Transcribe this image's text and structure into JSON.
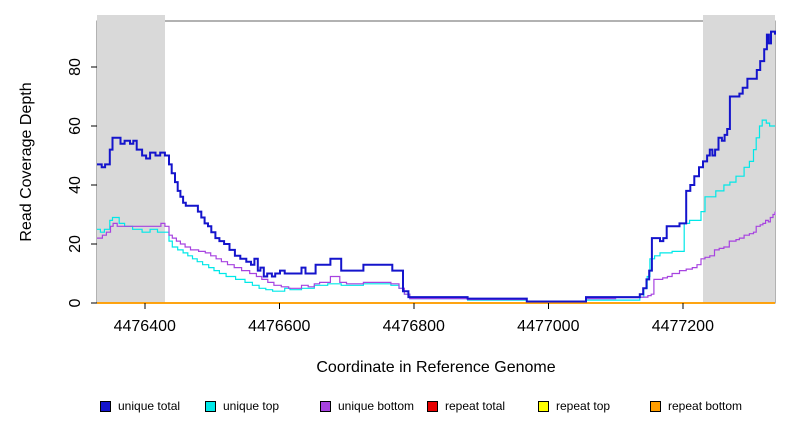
{
  "chart_data": {
    "type": "line",
    "subtype": "step",
    "title": "",
    "xlabel": "Coordinate in Reference Genome",
    "ylabel": "Read Coverage Depth",
    "xlim": [
      4476329,
      4477337
    ],
    "ylim": [
      0,
      95.6
    ],
    "x_ticks": [
      4476400,
      4476600,
      4476800,
      4477000,
      4477200
    ],
    "y_ticks": [
      0,
      20,
      40,
      60,
      80
    ],
    "grid": false,
    "legend_position": "bottom",
    "background_color": "#ffffff",
    "box_color": "#666666",
    "shaded_regions": {
      "color": "#d9d9d9",
      "ranges": [
        [
          4476329,
          4476430
        ],
        [
          4477230,
          4477337
        ]
      ]
    },
    "series": [
      {
        "name": "unique total",
        "color": "#1414cc",
        "line_width": 2,
        "points": [
          [
            4476329,
            47
          ],
          [
            4476336,
            46
          ],
          [
            4476341,
            47
          ],
          [
            4476348,
            52
          ],
          [
            4476352,
            56
          ],
          [
            4476364,
            54
          ],
          [
            4476370,
            55
          ],
          [
            4476378,
            54
          ],
          [
            4476383,
            55
          ],
          [
            4476388,
            52
          ],
          [
            4476396,
            50
          ],
          [
            4476402,
            49
          ],
          [
            4476408,
            51
          ],
          [
            4476416,
            50
          ],
          [
            4476423,
            51
          ],
          [
            4476430,
            50
          ],
          [
            4476436,
            47
          ],
          [
            4476440,
            44
          ],
          [
            4476445,
            41
          ],
          [
            4476449,
            38
          ],
          [
            4476453,
            36
          ],
          [
            4476457,
            34
          ],
          [
            4476461,
            33
          ],
          [
            4476474,
            33
          ],
          [
            4476479,
            31
          ],
          [
            4476484,
            29
          ],
          [
            4476489,
            27
          ],
          [
            4476494,
            26
          ],
          [
            4476499,
            24
          ],
          [
            4476505,
            22
          ],
          [
            4476511,
            21
          ],
          [
            4476518,
            20
          ],
          [
            4476526,
            18
          ],
          [
            4476534,
            16
          ],
          [
            4476542,
            15
          ],
          [
            4476551,
            14
          ],
          [
            4476558,
            13
          ],
          [
            4476563,
            15
          ],
          [
            4476568,
            11
          ],
          [
            4476572,
            12
          ],
          [
            4476577,
            9
          ],
          [
            4476582,
            10
          ],
          [
            4476589,
            9
          ],
          [
            4476594,
            10
          ],
          [
            4476601,
            11
          ],
          [
            4476608,
            10
          ],
          [
            4476633,
            12
          ],
          [
            4476639,
            10
          ],
          [
            4476654,
            13
          ],
          [
            4476676,
            15
          ],
          [
            4476692,
            11
          ],
          [
            4476725,
            13
          ],
          [
            4476768,
            11
          ],
          [
            4476784,
            4
          ],
          [
            4476792,
            2
          ],
          [
            4476880,
            1.5
          ],
          [
            4476968,
            0.5
          ],
          [
            4477056,
            2
          ],
          [
            4477136,
            3
          ],
          [
            4477141,
            5
          ],
          [
            4477146,
            8
          ],
          [
            4477150,
            11
          ],
          [
            4477154,
            22
          ],
          [
            4477166,
            21
          ],
          [
            4477171,
            22
          ],
          [
            4477176,
            26
          ],
          [
            4477195,
            27
          ],
          [
            4477205,
            38
          ],
          [
            4477211,
            40
          ],
          [
            4477217,
            43
          ],
          [
            4477224,
            46
          ],
          [
            4477230,
            48
          ],
          [
            4477236,
            50
          ],
          [
            4477240,
            52
          ],
          [
            4477244,
            50
          ],
          [
            4477248,
            52
          ],
          [
            4477253,
            56
          ],
          [
            4477258,
            55
          ],
          [
            4477262,
            57
          ],
          [
            4477266,
            59
          ],
          [
            4477270,
            70
          ],
          [
            4477284,
            71
          ],
          [
            4477289,
            73
          ],
          [
            4477296,
            76
          ],
          [
            4477310,
            79
          ],
          [
            4477315,
            82
          ],
          [
            4477321,
            86
          ],
          [
            4477325,
            91
          ],
          [
            4477328,
            88
          ],
          [
            4477331,
            92
          ],
          [
            4477337,
            91
          ]
        ]
      },
      {
        "name": "unique top",
        "color": "#00e8e8",
        "line_width": 1.2,
        "points": [
          [
            4476329,
            25
          ],
          [
            4476334,
            24
          ],
          [
            4476340,
            25
          ],
          [
            4476348,
            28
          ],
          [
            4476352,
            29
          ],
          [
            4476362,
            27
          ],
          [
            4476370,
            26
          ],
          [
            4476382,
            25
          ],
          [
            4476396,
            24
          ],
          [
            4476408,
            25
          ],
          [
            4476419,
            24
          ],
          [
            4476430,
            24
          ],
          [
            4476436,
            21
          ],
          [
            4476441,
            19
          ],
          [
            4476449,
            18
          ],
          [
            4476457,
            17
          ],
          [
            4476464,
            16
          ],
          [
            4476471,
            15
          ],
          [
            4476478,
            14
          ],
          [
            4476486,
            13
          ],
          [
            4476495,
            12
          ],
          [
            4476503,
            11
          ],
          [
            4476511,
            10
          ],
          [
            4476521,
            9
          ],
          [
            4476535,
            8
          ],
          [
            4476549,
            7
          ],
          [
            4476560,
            6
          ],
          [
            4476570,
            5
          ],
          [
            4476580,
            4.5
          ],
          [
            4476590,
            4
          ],
          [
            4476608,
            5
          ],
          [
            4476616,
            4.5
          ],
          [
            4476633,
            5
          ],
          [
            4476652,
            6
          ],
          [
            4476672,
            6.5
          ],
          [
            4476692,
            6
          ],
          [
            4476725,
            6.5
          ],
          [
            4476766,
            6
          ],
          [
            4476778,
            5
          ],
          [
            4476786,
            3
          ],
          [
            4476794,
            1.5
          ],
          [
            4476880,
            1
          ],
          [
            4476968,
            0.5
          ],
          [
            4477056,
            1
          ],
          [
            4477136,
            2
          ],
          [
            4477142,
            5
          ],
          [
            4477147,
            9
          ],
          [
            4477151,
            15
          ],
          [
            4477158,
            16
          ],
          [
            4477166,
            17
          ],
          [
            4477184,
            17.5
          ],
          [
            4477202,
            27
          ],
          [
            4477210,
            28
          ],
          [
            4477227,
            31
          ],
          [
            4477233,
            36
          ],
          [
            4477249,
            38
          ],
          [
            4477261,
            40
          ],
          [
            4477270,
            41
          ],
          [
            4477279,
            43
          ],
          [
            4477291,
            46
          ],
          [
            4477299,
            48
          ],
          [
            4477305,
            52
          ],
          [
            4477309,
            56
          ],
          [
            4477314,
            60
          ],
          [
            4477318,
            62
          ],
          [
            4477324,
            61
          ],
          [
            4477329,
            60
          ],
          [
            4477337,
            60
          ]
        ]
      },
      {
        "name": "unique bottom",
        "color": "#a743e0",
        "line_width": 1.2,
        "points": [
          [
            4476329,
            22
          ],
          [
            4476337,
            23
          ],
          [
            4476343,
            24
          ],
          [
            4476349,
            26
          ],
          [
            4476353,
            27
          ],
          [
            4476359,
            26
          ],
          [
            4476376,
            26
          ],
          [
            4476395,
            26
          ],
          [
            4476413,
            26
          ],
          [
            4476424,
            27
          ],
          [
            4476430,
            26
          ],
          [
            4476436,
            23
          ],
          [
            4476441,
            22
          ],
          [
            4476447,
            21
          ],
          [
            4476453,
            20
          ],
          [
            4476460,
            19
          ],
          [
            4476468,
            18
          ],
          [
            4476480,
            17.5
          ],
          [
            4476490,
            17
          ],
          [
            4476498,
            16
          ],
          [
            4476506,
            15
          ],
          [
            4476514,
            14
          ],
          [
            4476523,
            13
          ],
          [
            4476533,
            12
          ],
          [
            4476544,
            11
          ],
          [
            4476556,
            10
          ],
          [
            4476566,
            9
          ],
          [
            4476574,
            8
          ],
          [
            4476583,
            7
          ],
          [
            4476592,
            6
          ],
          [
            4476603,
            5.5
          ],
          [
            4476614,
            5
          ],
          [
            4476633,
            6
          ],
          [
            4476643,
            5.5
          ],
          [
            4476652,
            6.5
          ],
          [
            4476660,
            7
          ],
          [
            4476676,
            9
          ],
          [
            4476690,
            7
          ],
          [
            4476700,
            6.5
          ],
          [
            4476725,
            7
          ],
          [
            4476766,
            6.5
          ],
          [
            4476778,
            5
          ],
          [
            4476786,
            3
          ],
          [
            4476794,
            1.5
          ],
          [
            4476880,
            1.2
          ],
          [
            4476968,
            0.5
          ],
          [
            4477056,
            1.5
          ],
          [
            4477100,
            1.8
          ],
          [
            4477136,
            2
          ],
          [
            4477148,
            2.5
          ],
          [
            4477153,
            3
          ],
          [
            4477157,
            8
          ],
          [
            4477170,
            8.5
          ],
          [
            4477177,
            9
          ],
          [
            4477184,
            10
          ],
          [
            4477195,
            11
          ],
          [
            4477205,
            11.5
          ],
          [
            4477214,
            12
          ],
          [
            4477221,
            13
          ],
          [
            4477227,
            15
          ],
          [
            4477233,
            15.5
          ],
          [
            4477240,
            16
          ],
          [
            4477247,
            18
          ],
          [
            4477254,
            18.5
          ],
          [
            4477261,
            19
          ],
          [
            4477269,
            21
          ],
          [
            4477279,
            21.5
          ],
          [
            4477284,
            22
          ],
          [
            4477291,
            23
          ],
          [
            4477299,
            23.5
          ],
          [
            4477305,
            24
          ],
          [
            4477309,
            26
          ],
          [
            4477315,
            26.5
          ],
          [
            4477319,
            27
          ],
          [
            4477323,
            28
          ],
          [
            4477327,
            27.5
          ],
          [
            4477330,
            29
          ],
          [
            4477334,
            30
          ],
          [
            4477337,
            31
          ]
        ]
      },
      {
        "name": "repeat total",
        "color": "#e60000",
        "line_width": 1.2,
        "points": [
          [
            4476329,
            0
          ],
          [
            4477337,
            0
          ]
        ]
      },
      {
        "name": "repeat top",
        "color": "#ffff00",
        "line_width": 1.2,
        "points": [
          [
            4476329,
            0
          ],
          [
            4477337,
            0
          ]
        ]
      },
      {
        "name": "repeat bottom",
        "color": "#ff9e00",
        "line_width": 1.8,
        "points": [
          [
            4476329,
            0
          ],
          [
            4477337,
            0
          ]
        ]
      }
    ]
  },
  "legend": {
    "item_x_positions": [
      100,
      205,
      320,
      427,
      538,
      650
    ]
  }
}
